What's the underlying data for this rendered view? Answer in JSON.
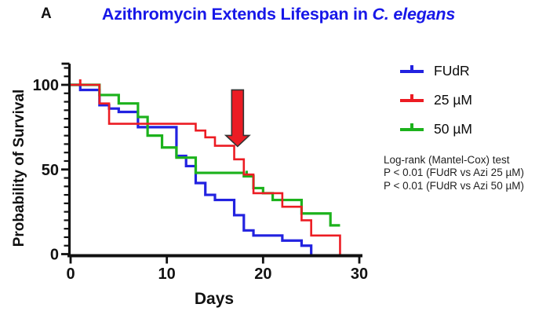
{
  "panel_label": "A",
  "title": {
    "text_main": "Azithromycin Extends Lifespan in",
    "text_italic": "C. elegans",
    "color": "#1717E8"
  },
  "legend": [
    {
      "label": "FUdR"
    },
    {
      "label": "25 µM"
    },
    {
      "label": "50 µM"
    }
  ],
  "stats": {
    "line1": "Log-rank (Mantel-Cox) test",
    "line2": "P < 0.01 (FUdR vs Azi 25 µM)",
    "line3": "P < 0.01 (FUdR vs Azi 50 µM)"
  },
  "chart_data": {
    "type": "line",
    "subtype": "kaplan-meier-step-survival",
    "title": "Azithromycin Extends Lifespan in C. elegans",
    "xlabel": "Days",
    "ylabel": "Probability of Survival",
    "xlim": [
      0,
      30
    ],
    "ylim": [
      0,
      100
    ],
    "x_ticks": [
      0,
      10,
      20,
      30
    ],
    "y_ticks": [
      0,
      50,
      100
    ],
    "y_minor_step": 5,
    "y_axis_top": 112.5,
    "grid": "off",
    "legend_position": "right",
    "axis_color": "#111111",
    "series": [
      {
        "name": "FUdR",
        "color": "#2222E0",
        "width": 3.2,
        "steps": [
          [
            0,
            100
          ],
          [
            1,
            97
          ],
          [
            3,
            88
          ],
          [
            4,
            86
          ],
          [
            5,
            84
          ],
          [
            7,
            75
          ],
          [
            11,
            58
          ],
          [
            12,
            52
          ],
          [
            13,
            42
          ],
          [
            14,
            35
          ],
          [
            15,
            32
          ],
          [
            17,
            23
          ],
          [
            18,
            14
          ],
          [
            19,
            11
          ],
          [
            22,
            8
          ],
          [
            24,
            5
          ],
          [
            25,
            0
          ]
        ],
        "end_day": 25,
        "censor_days": []
      },
      {
        "name": "25 µM",
        "color": "#EC1C23",
        "width": 2.6,
        "steps": [
          [
            0,
            100
          ],
          [
            3,
            89
          ],
          [
            4,
            77
          ],
          [
            13,
            73
          ],
          [
            14,
            69
          ],
          [
            15,
            64
          ],
          [
            17,
            56
          ],
          [
            18,
            47
          ],
          [
            19,
            36
          ],
          [
            22,
            28
          ],
          [
            24,
            20
          ],
          [
            25,
            11
          ],
          [
            28,
            0
          ]
        ],
        "end_day": 28,
        "censor_days": [
          1
        ]
      },
      {
        "name": "50 µM",
        "color": "#1CB21C",
        "width": 3.2,
        "steps": [
          [
            0,
            100
          ],
          [
            3,
            94
          ],
          [
            5,
            89
          ],
          [
            7,
            81
          ],
          [
            8,
            70
          ],
          [
            9.5,
            63
          ],
          [
            11,
            57
          ],
          [
            13,
            48
          ],
          [
            18,
            46
          ],
          [
            19,
            39
          ],
          [
            20,
            36
          ],
          [
            21,
            32
          ],
          [
            24,
            24
          ],
          [
            27,
            17
          ]
        ],
        "end_day": 28,
        "censor_days": [
          18.3
        ]
      }
    ],
    "annotation_arrow": {
      "shape": "arrow-down",
      "day": 17.35,
      "from_pct": 97,
      "to_pct": 65,
      "fill": "#EB1C24",
      "outline": "#333333"
    }
  }
}
